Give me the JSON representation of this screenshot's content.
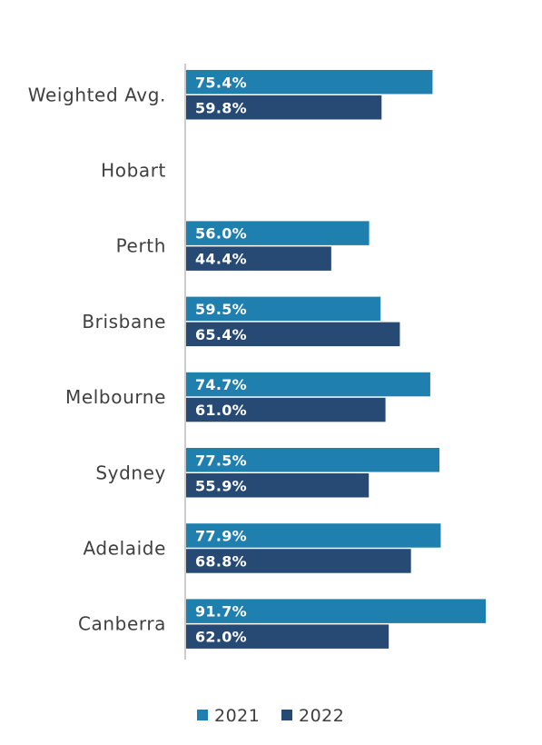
{
  "chart_data": {
    "type": "bar",
    "orientation": "horizontal",
    "categories": [
      "Weighted Avg.",
      "Hobart",
      "Perth",
      "Brisbane",
      "Melbourne",
      "Sydney",
      "Adelaide",
      "Canberra"
    ],
    "series": [
      {
        "name": "2021",
        "color": "#1f7fae",
        "values": [
          75.4,
          null,
          56.0,
          59.5,
          74.7,
          77.5,
          77.9,
          91.7
        ],
        "labels": [
          "75.4%",
          "",
          "56.0%",
          "59.5%",
          "74.7%",
          "77.5%",
          "77.9%",
          "91.7%"
        ]
      },
      {
        "name": "2022",
        "color": "#274a75",
        "values": [
          59.8,
          null,
          44.4,
          65.4,
          61.0,
          55.9,
          68.8,
          62.0
        ],
        "labels": [
          "59.8%",
          "",
          "44.4%",
          "65.4%",
          "61.0%",
          "55.9%",
          "68.8%",
          "62.0%"
        ]
      }
    ],
    "xlim": [
      0,
      100
    ],
    "axis_line_color": "#cccccc",
    "grid": false,
    "legend_position": "bottom"
  }
}
